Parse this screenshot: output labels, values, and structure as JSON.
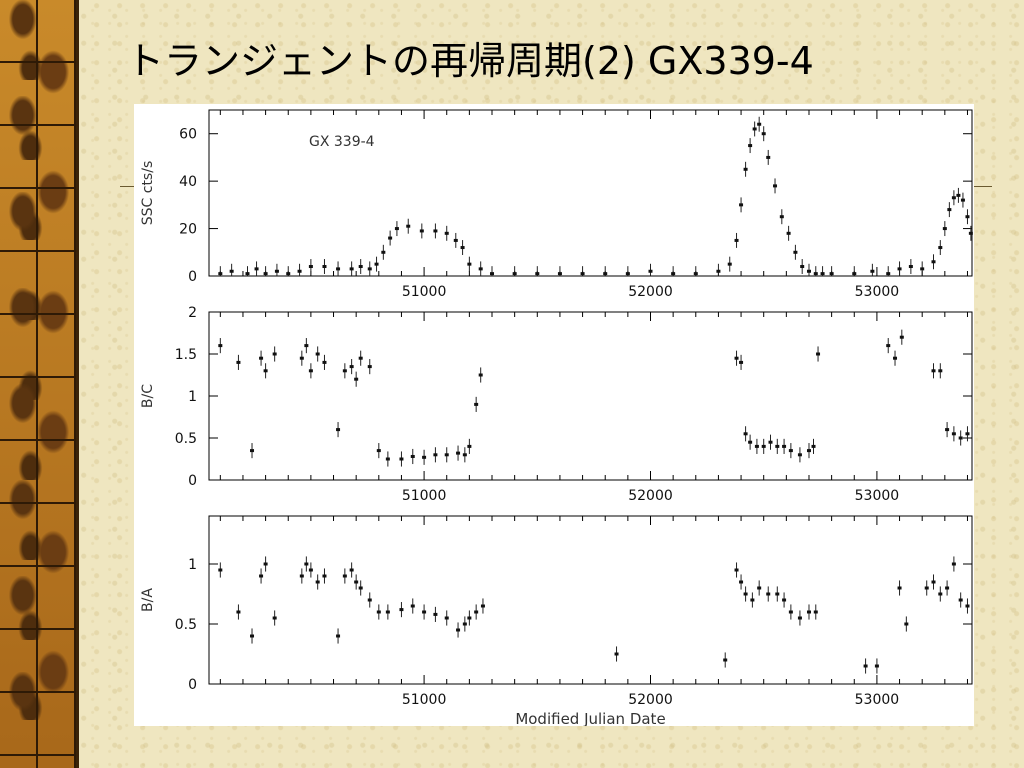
{
  "slide": {
    "title": "トランジェントの再帰周期(2)  GX339-4"
  },
  "chart_data": {
    "type": "scatter",
    "style": "error-bar time series, three stacked panels sharing x axis",
    "xlabel": "Modified Julian Date",
    "xlim": [
      50050,
      53420
    ],
    "x_ticks": [
      51000,
      52000,
      53000
    ],
    "panels": [
      {
        "ylabel": "SSC cts/s",
        "annotation": "GX 339-4",
        "ylim": [
          0,
          70
        ],
        "y_ticks": [
          0,
          20,
          40,
          60
        ],
        "x": [
          50100,
          50150,
          50220,
          50260,
          50300,
          50350,
          50400,
          50450,
          50500,
          50560,
          50620,
          50680,
          50720,
          50760,
          50790,
          50820,
          50850,
          50880,
          50930,
          50990,
          51050,
          51100,
          51140,
          51170,
          51200,
          51250,
          51300,
          51400,
          51500,
          51600,
          51700,
          51800,
          51900,
          52000,
          52100,
          52200,
          52300,
          52350,
          52380,
          52400,
          52420,
          52440,
          52460,
          52480,
          52500,
          52520,
          52550,
          52580,
          52610,
          52640,
          52670,
          52700,
          52730,
          52760,
          52800,
          52900,
          52980,
          53050,
          53100,
          53150,
          53200,
          53250,
          53280,
          53300,
          53320,
          53340,
          53360,
          53380,
          53400,
          53415
        ],
        "y": [
          1,
          2,
          1,
          3,
          1,
          2,
          1,
          2,
          4,
          4,
          3,
          3,
          4,
          3,
          5,
          10,
          16,
          20,
          21,
          19,
          19,
          18,
          15,
          12,
          5,
          3,
          1,
          1,
          1,
          1,
          1,
          1,
          1,
          2,
          1,
          1,
          2,
          5,
          15,
          30,
          45,
          55,
          62,
          64,
          60,
          50,
          38,
          25,
          18,
          10,
          4,
          2,
          1,
          1,
          1,
          1,
          2,
          1,
          3,
          4,
          3,
          6,
          12,
          20,
          28,
          33,
          34,
          32,
          25,
          18
        ],
        "series": [
          {
            "name": "",
            "values": []
          }
        ]
      },
      {
        "ylabel": "B/C",
        "ylim": [
          0,
          2
        ],
        "y_ticks": [
          0,
          0.5,
          1,
          1.5,
          2
        ],
        "x": [
          50100,
          50180,
          50240,
          50280,
          50300,
          50340,
          50460,
          50480,
          50500,
          50530,
          50560,
          50620,
          50650,
          50680,
          50700,
          50720,
          50760,
          50800,
          50840,
          50900,
          50950,
          51000,
          51050,
          51100,
          51150,
          51180,
          51200,
          51230,
          51250,
          52380,
          52400,
          52420,
          52440,
          52470,
          52500,
          52530,
          52560,
          52590,
          52620,
          52660,
          52700,
          52720,
          52740,
          53050,
          53080,
          53110,
          53250,
          53280,
          53310,
          53340,
          53370,
          53400
        ],
        "y": [
          1.6,
          1.4,
          0.35,
          1.45,
          1.3,
          1.5,
          1.45,
          1.6,
          1.3,
          1.5,
          1.4,
          0.6,
          1.3,
          1.35,
          1.2,
          1.45,
          1.35,
          0.35,
          0.25,
          0.25,
          0.28,
          0.27,
          0.3,
          0.3,
          0.32,
          0.3,
          0.4,
          0.9,
          1.25,
          1.45,
          1.4,
          0.55,
          0.45,
          0.4,
          0.4,
          0.45,
          0.4,
          0.4,
          0.35,
          0.3,
          0.35,
          0.4,
          1.5,
          1.6,
          1.45,
          1.7,
          1.3,
          1.3,
          0.6,
          0.55,
          0.5,
          0.55
        ],
        "series": [
          {
            "name": "",
            "values": []
          }
        ]
      },
      {
        "ylabel": "B/A",
        "ylim": [
          0,
          1.4
        ],
        "y_ticks": [
          0,
          0.5,
          1
        ],
        "x": [
          50100,
          50180,
          50240,
          50280,
          50300,
          50340,
          50460,
          50480,
          50500,
          50530,
          50560,
          50620,
          50650,
          50680,
          50700,
          50720,
          50760,
          50800,
          50840,
          50900,
          50950,
          51000,
          51050,
          51100,
          51150,
          51180,
          51200,
          51230,
          51260,
          51850,
          52330,
          52380,
          52400,
          52420,
          52450,
          52480,
          52520,
          52560,
          52590,
          52620,
          52660,
          52700,
          52730,
          52950,
          53000,
          53100,
          53130,
          53220,
          53250,
          53280,
          53310,
          53340,
          53370,
          53400
        ],
        "y": [
          0.95,
          0.6,
          0.4,
          0.9,
          1.0,
          0.55,
          0.9,
          1.0,
          0.95,
          0.85,
          0.9,
          0.4,
          0.9,
          0.95,
          0.85,
          0.8,
          0.7,
          0.6,
          0.6,
          0.62,
          0.65,
          0.6,
          0.58,
          0.55,
          0.45,
          0.5,
          0.55,
          0.6,
          0.65,
          0.25,
          0.2,
          0.95,
          0.85,
          0.75,
          0.7,
          0.8,
          0.75,
          0.75,
          0.7,
          0.6,
          0.55,
          0.6,
          0.6,
          0.15,
          0.15,
          0.8,
          0.5,
          0.8,
          0.85,
          0.75,
          0.8,
          1.0,
          0.7,
          0.65
        ],
        "series": [
          {
            "name": "",
            "values": []
          }
        ]
      }
    ]
  }
}
